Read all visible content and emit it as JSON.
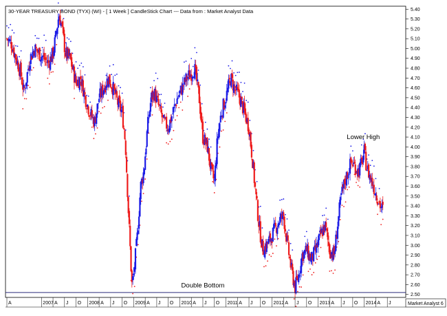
{
  "chart_data": {
    "type": "candlestick",
    "title": "30-YEAR TREASURY BOND (TYX) (WI) -  [ 1 Week ] CandleStick Chart --- Data from : Market Analyst Data",
    "y_ticks": [
      "5.40",
      "5.30",
      "5.20",
      "5.10",
      "5.00",
      "4.90",
      "4.80",
      "4.70",
      "4.60",
      "4.50",
      "4.40",
      "4.30",
      "4.20",
      "4.10",
      "4.00",
      "3.90",
      "3.80",
      "3.70",
      "3.60",
      "3.50",
      "3.40",
      "3.30",
      "3.20",
      "3.10",
      "3.00",
      "2.90",
      "2.80",
      "2.70",
      "2.60",
      "2.50"
    ],
    "ylim": [
      2.47,
      5.43
    ],
    "x_ticks": [
      "A",
      "2007",
      "A",
      "J",
      "O",
      "2008",
      "A",
      "J",
      "O",
      "2009",
      "A",
      "J",
      "O",
      "2010",
      "A",
      "J",
      "O",
      "2011",
      "A",
      "J",
      "O",
      "2012",
      "A",
      "J",
      "O",
      "2013",
      "A",
      "J",
      "O",
      "2014",
      "A",
      "J"
    ],
    "x_tick_dates": [
      2006.25,
      2007.0,
      2007.25,
      2007.5,
      2007.75,
      2008.0,
      2008.25,
      2008.5,
      2008.75,
      2009.0,
      2009.25,
      2009.5,
      2009.75,
      2010.0,
      2010.25,
      2010.5,
      2010.75,
      2011.0,
      2011.25,
      2011.5,
      2011.75,
      2012.0,
      2012.25,
      2012.5,
      2012.75,
      2013.0,
      2013.25,
      2013.5,
      2013.75,
      2014.0,
      2014.25,
      2014.5
    ],
    "xlim": [
      2006.22,
      2014.9
    ],
    "horizontal_line": 2.52,
    "price_path": [
      [
        2006.25,
        5.1
      ],
      [
        2006.35,
        5.05
      ],
      [
        2006.45,
        4.9
      ],
      [
        2006.55,
        4.75
      ],
      [
        2006.62,
        4.55
      ],
      [
        2006.75,
        4.9
      ],
      [
        2006.85,
        5.0
      ],
      [
        2006.95,
        4.95
      ],
      [
        2007.05,
        4.9
      ],
      [
        2007.15,
        4.85
      ],
      [
        2007.25,
        4.95
      ],
      [
        2007.32,
        5.15
      ],
      [
        2007.38,
        5.35
      ],
      [
        2007.45,
        5.2
      ],
      [
        2007.52,
        4.95
      ],
      [
        2007.62,
        4.9
      ],
      [
        2007.75,
        4.65
      ],
      [
        2007.85,
        4.7
      ],
      [
        2007.95,
        4.5
      ],
      [
        2008.05,
        4.35
      ],
      [
        2008.15,
        4.25
      ],
      [
        2008.25,
        4.5
      ],
      [
        2008.35,
        4.6
      ],
      [
        2008.45,
        4.7
      ],
      [
        2008.55,
        4.6
      ],
      [
        2008.65,
        4.45
      ],
      [
        2008.75,
        4.35
      ],
      [
        2008.82,
        4.05
      ],
      [
        2008.88,
        3.4
      ],
      [
        2008.93,
        2.9
      ],
      [
        2008.96,
        2.6
      ],
      [
        2009.0,
        2.7
      ],
      [
        2009.08,
        3.1
      ],
      [
        2009.15,
        3.6
      ],
      [
        2009.22,
        3.75
      ],
      [
        2009.3,
        4.2
      ],
      [
        2009.38,
        4.5
      ],
      [
        2009.45,
        4.55
      ],
      [
        2009.55,
        4.4
      ],
      [
        2009.65,
        4.25
      ],
      [
        2009.75,
        4.2
      ],
      [
        2009.85,
        4.35
      ],
      [
        2009.95,
        4.5
      ],
      [
        2010.05,
        4.6
      ],
      [
        2010.15,
        4.7
      ],
      [
        2010.25,
        4.75
      ],
      [
        2010.32,
        4.8
      ],
      [
        2010.42,
        4.5
      ],
      [
        2010.5,
        4.1
      ],
      [
        2010.6,
        4.0
      ],
      [
        2010.68,
        3.75
      ],
      [
        2010.75,
        3.65
      ],
      [
        2010.82,
        4.1
      ],
      [
        2010.9,
        4.35
      ],
      [
        2011.0,
        4.5
      ],
      [
        2011.1,
        4.7
      ],
      [
        2011.18,
        4.6
      ],
      [
        2011.3,
        4.5
      ],
      [
        2011.4,
        4.35
      ],
      [
        2011.5,
        4.2
      ],
      [
        2011.58,
        3.85
      ],
      [
        2011.65,
        3.5
      ],
      [
        2011.72,
        3.2
      ],
      [
        2011.8,
        2.95
      ],
      [
        2011.88,
        3.0
      ],
      [
        2011.95,
        3.05
      ],
      [
        2012.05,
        3.15
      ],
      [
        2012.15,
        3.25
      ],
      [
        2012.25,
        3.3
      ],
      [
        2012.32,
        3.05
      ],
      [
        2012.42,
        2.75
      ],
      [
        2012.5,
        2.57
      ],
      [
        2012.58,
        2.7
      ],
      [
        2012.65,
        2.9
      ],
      [
        2012.75,
        2.95
      ],
      [
        2012.85,
        2.85
      ],
      [
        2012.95,
        2.95
      ],
      [
        2013.05,
        3.1
      ],
      [
        2013.15,
        3.2
      ],
      [
        2013.25,
        2.95
      ],
      [
        2013.35,
        2.9
      ],
      [
        2013.42,
        3.2
      ],
      [
        2013.5,
        3.5
      ],
      [
        2013.58,
        3.65
      ],
      [
        2013.65,
        3.75
      ],
      [
        2013.72,
        3.85
      ],
      [
        2013.8,
        3.8
      ],
      [
        2013.88,
        3.75
      ],
      [
        2013.95,
        3.85
      ],
      [
        2014.0,
        3.95
      ],
      [
        2014.05,
        3.8
      ],
      [
        2014.12,
        3.7
      ],
      [
        2014.2,
        3.6
      ],
      [
        2014.28,
        3.5
      ],
      [
        2014.35,
        3.4
      ],
      [
        2014.42,
        3.35
      ]
    ],
    "annotations": [
      {
        "text": "Lower High",
        "x": 2013.98,
        "y": 4.08
      },
      {
        "text": "Double Bottom",
        "x": 2010.5,
        "y": 2.57
      }
    ],
    "colors": {
      "up": "#1c1ce6",
      "down": "#ee1c1c",
      "psar": "#ee1c1c",
      "psar_above": "#1c1ce6",
      "support_line": "#2a2a7a"
    }
  },
  "footer": {
    "brand": "Market Analyst 6"
  }
}
